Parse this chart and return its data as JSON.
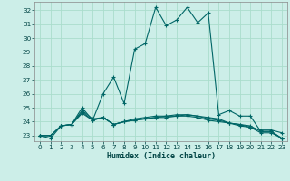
{
  "title": "",
  "xlabel": "Humidex (Indice chaleur)",
  "bg_color": "#cceee8",
  "grid_color": "#aaddcc",
  "line_color": "#006666",
  "x_ticks": [
    0,
    1,
    2,
    3,
    4,
    5,
    6,
    7,
    8,
    9,
    10,
    11,
    12,
    13,
    14,
    15,
    16,
    17,
    18,
    19,
    20,
    21,
    22,
    23
  ],
  "y_ticks": [
    23,
    24,
    25,
    26,
    27,
    28,
    29,
    30,
    31,
    32
  ],
  "xlim": [
    -0.5,
    23.5
  ],
  "ylim": [
    22.6,
    32.6
  ],
  "series": [
    [
      23.0,
      22.8,
      23.7,
      23.8,
      25.0,
      24.1,
      26.0,
      27.2,
      25.3,
      29.2,
      29.6,
      32.2,
      30.9,
      31.3,
      32.2,
      31.1,
      31.8,
      24.5,
      24.8,
      24.4,
      24.4,
      23.3,
      23.3,
      22.8
    ],
    [
      23.0,
      23.0,
      23.7,
      23.8,
      24.8,
      24.2,
      24.3,
      23.8,
      24.0,
      24.2,
      24.3,
      24.4,
      24.4,
      24.5,
      24.5,
      24.4,
      24.3,
      24.2,
      23.9,
      23.7,
      23.6,
      23.4,
      23.4,
      23.2
    ],
    [
      23.0,
      23.0,
      23.7,
      23.8,
      24.7,
      24.1,
      24.3,
      23.8,
      24.0,
      24.1,
      24.2,
      24.3,
      24.4,
      24.4,
      24.5,
      24.4,
      24.2,
      24.1,
      23.9,
      23.8,
      23.7,
      23.3,
      23.3,
      22.8
    ],
    [
      23.0,
      23.0,
      23.7,
      23.8,
      24.6,
      24.1,
      24.3,
      23.8,
      24.0,
      24.1,
      24.2,
      24.3,
      24.3,
      24.4,
      24.4,
      24.3,
      24.1,
      24.0,
      23.9,
      23.8,
      23.6,
      23.2,
      23.2,
      22.8
    ]
  ]
}
